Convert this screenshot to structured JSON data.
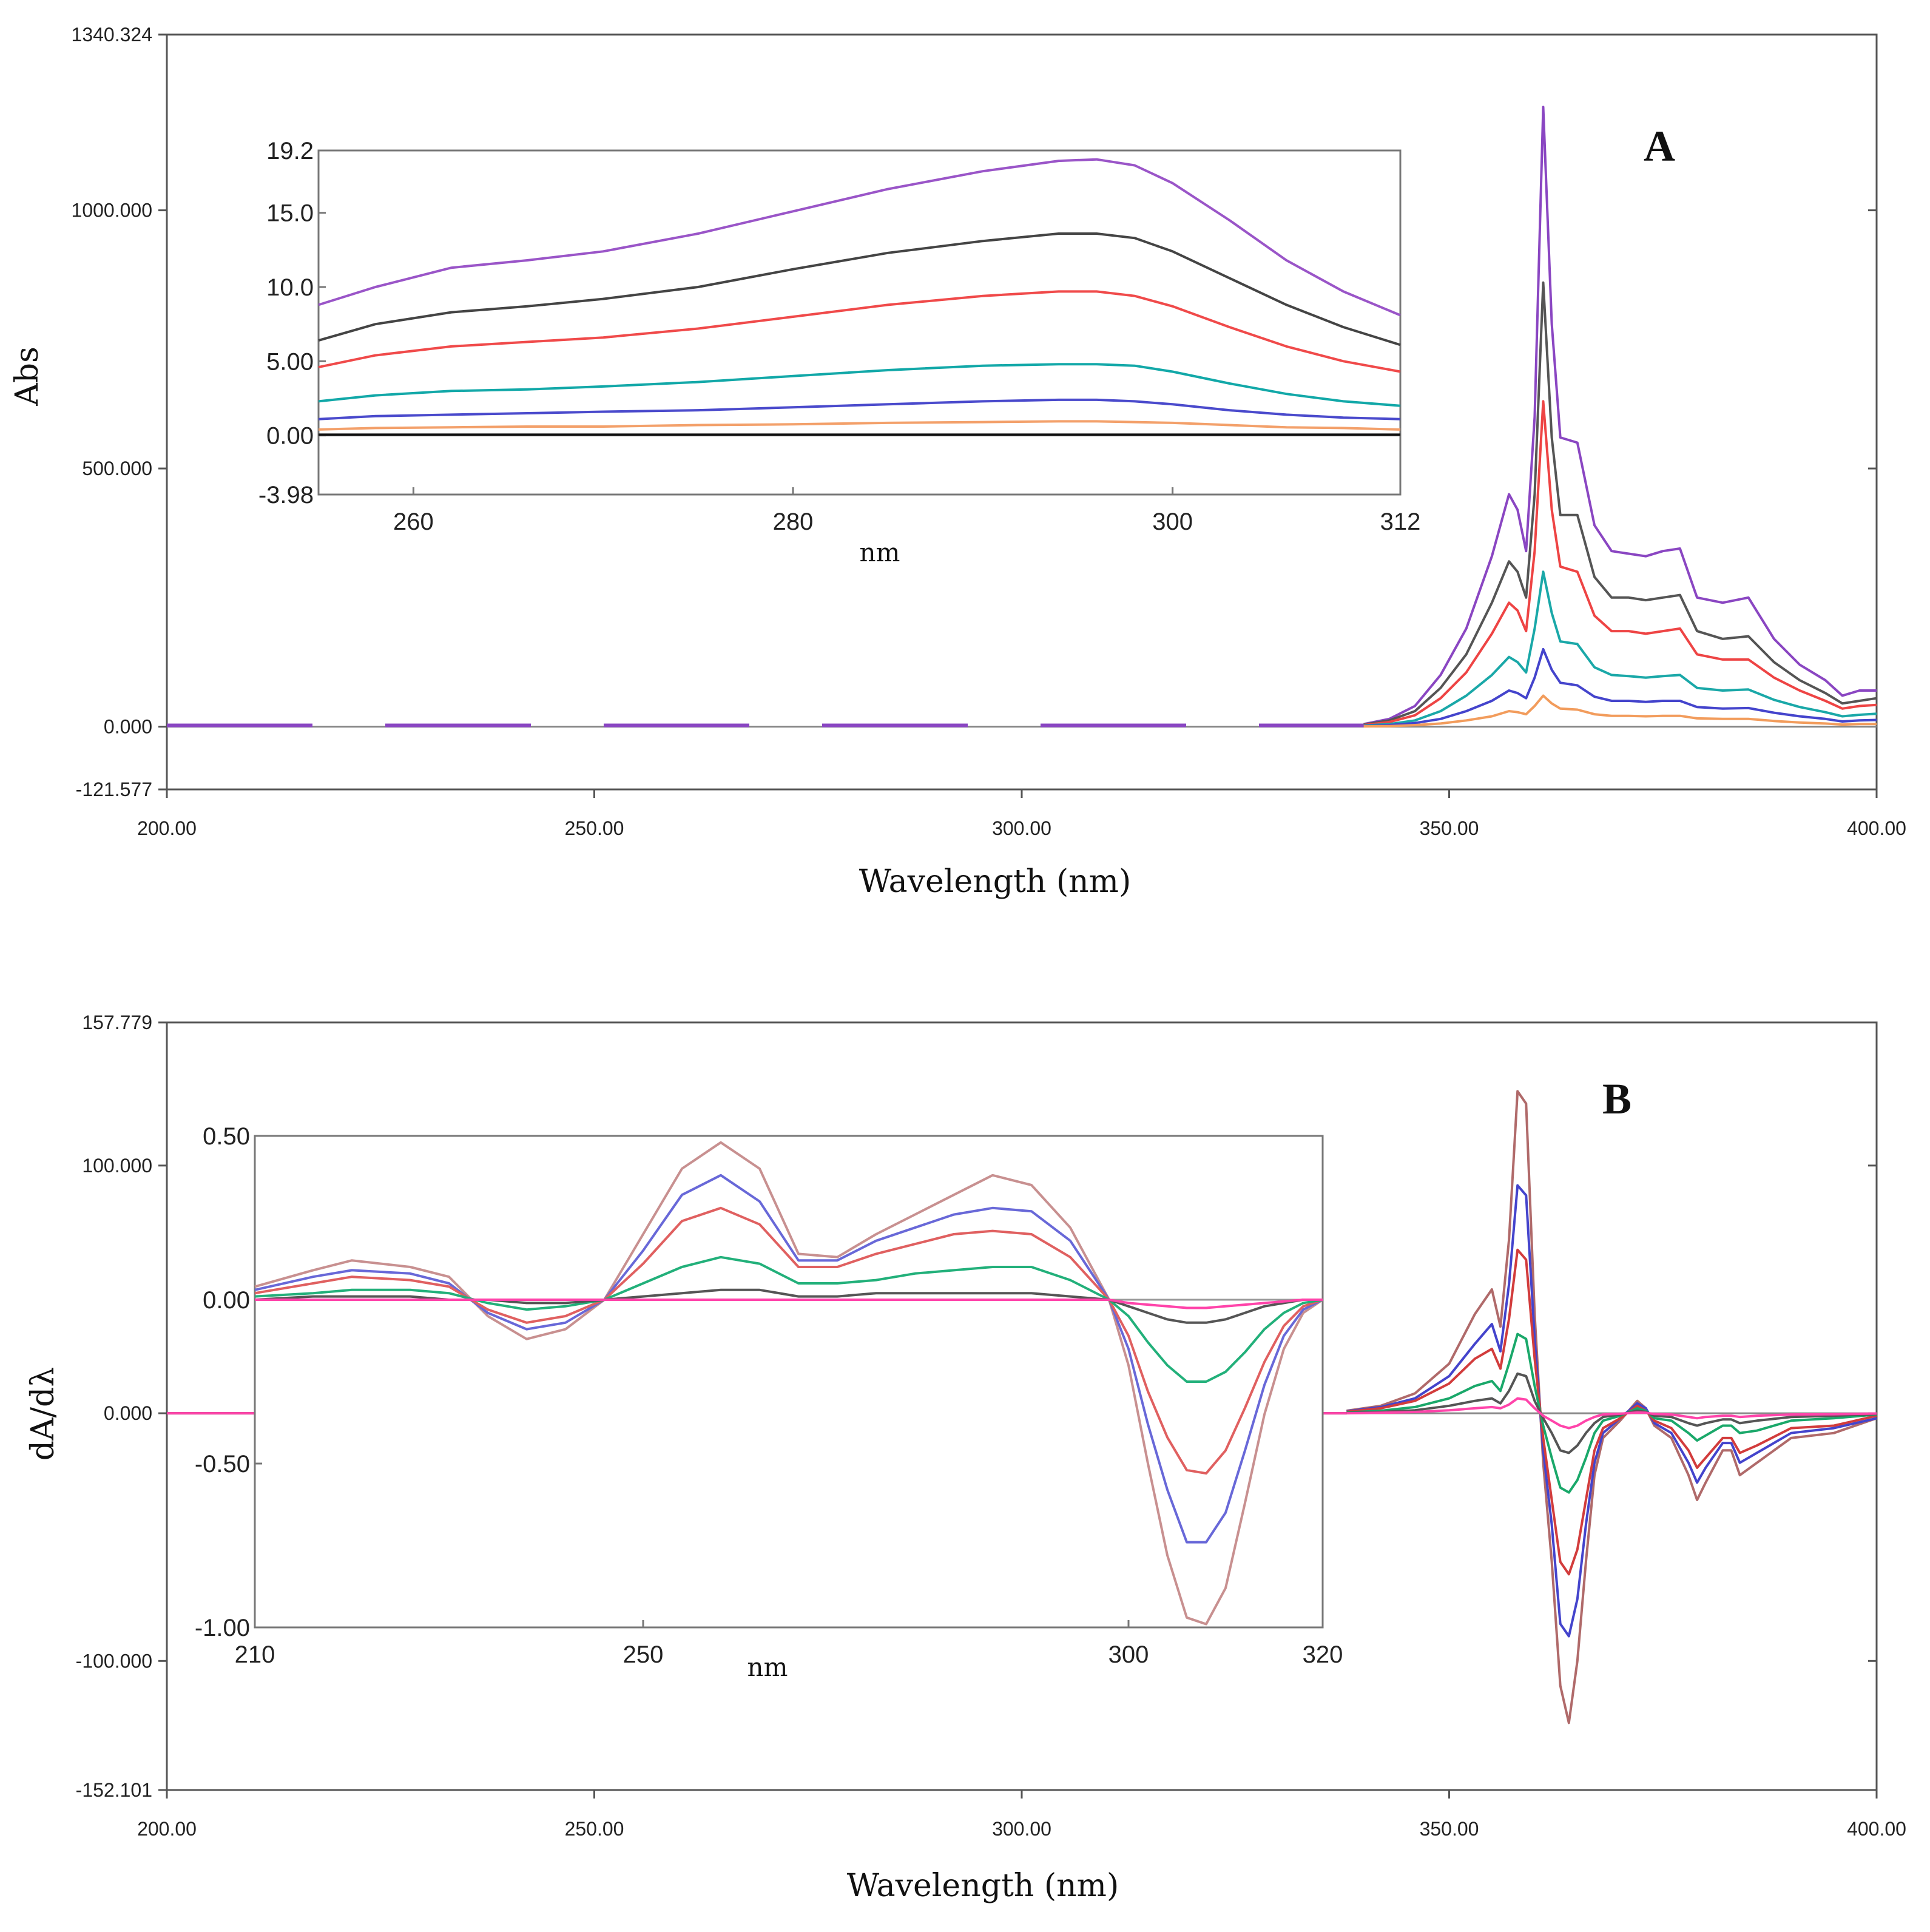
{
  "chart_data": [
    {
      "type": "line",
      "panel": "A",
      "panel_label": "A",
      "xlabel": "Wavelength (nm)",
      "ylabel": "Abs",
      "xlim": [
        200,
        400
      ],
      "ylim": [
        -121.577,
        1340.324
      ],
      "x_ticks": [
        200,
        250,
        300,
        350,
        400
      ],
      "x_tick_labels": [
        "200.00",
        "250.00",
        "300.00",
        "350.00",
        "400.00"
      ],
      "y_ticks": [
        1340.324,
        1000,
        500,
        0,
        -121.577
      ],
      "y_tick_labels": [
        "1340.324",
        "1000.000",
        "500.000",
        "0.000",
        "-121.577"
      ],
      "x": [
        340,
        343,
        346,
        349,
        352,
        355,
        357,
        358,
        359,
        360,
        361,
        362,
        363,
        365,
        367,
        369,
        371,
        373,
        375,
        377,
        379,
        382,
        385,
        388,
        391,
        394,
        396,
        398,
        400
      ],
      "series": [
        {
          "color": "#8a46c2",
          "values": [
            5,
            15,
            40,
            100,
            190,
            330,
            450,
            420,
            340,
            600,
            1200,
            780,
            560,
            550,
            390,
            340,
            335,
            330,
            340,
            345,
            250,
            240,
            250,
            170,
            120,
            90,
            60,
            70,
            70
          ]
        },
        {
          "color": "#555555",
          "values": [
            4,
            12,
            30,
            75,
            140,
            240,
            320,
            300,
            250,
            450,
            860,
            560,
            410,
            410,
            290,
            250,
            250,
            245,
            250,
            255,
            185,
            170,
            175,
            125,
            90,
            65,
            45,
            50,
            55
          ]
        },
        {
          "color": "#ee4444",
          "values": [
            3,
            9,
            22,
            55,
            105,
            180,
            240,
            225,
            185,
            340,
            630,
            420,
            310,
            300,
            215,
            185,
            185,
            180,
            185,
            190,
            140,
            130,
            130,
            95,
            70,
            50,
            35,
            40,
            42
          ]
        },
        {
          "color": "#1aa8a8",
          "values": [
            2,
            5,
            12,
            30,
            60,
            100,
            135,
            125,
            105,
            190,
            300,
            220,
            165,
            160,
            115,
            100,
            98,
            95,
            98,
            100,
            75,
            70,
            72,
            52,
            38,
            28,
            20,
            23,
            25
          ]
        },
        {
          "color": "#4444cc",
          "values": [
            1,
            3,
            7,
            15,
            30,
            50,
            70,
            65,
            55,
            95,
            150,
            110,
            85,
            80,
            58,
            50,
            50,
            48,
            50,
            50,
            38,
            35,
            36,
            27,
            20,
            15,
            10,
            12,
            13
          ]
        },
        {
          "color": "#f29c5c",
          "values": [
            0.5,
            1,
            3,
            6,
            12,
            20,
            30,
            28,
            24,
            40,
            60,
            45,
            35,
            33,
            24,
            21,
            21,
            20,
            21,
            21,
            16,
            15,
            15,
            11,
            8,
            6,
            4,
            5,
            5
          ]
        }
      ],
      "inset": {
        "xlabel": "nm",
        "xlim": [
          255,
          312
        ],
        "ylim": [
          -3.98,
          19.2
        ],
        "x_ticks": [
          260,
          280,
          300,
          312
        ],
        "x_tick_labels": [
          "260",
          "280",
          "300",
          "312"
        ],
        "y_ticks": [
          19.2,
          15,
          10,
          5,
          0,
          -3.98
        ],
        "y_tick_labels": [
          "19.2",
          "15.0",
          "10.0",
          "5.00",
          "0.00",
          "-3.98"
        ],
        "x": [
          255,
          258,
          262,
          266,
          270,
          275,
          280,
          285,
          290,
          294,
          296,
          298,
          300,
          303,
          306,
          309,
          312
        ],
        "series": [
          {
            "color": "#9a55c8",
            "values": [
              8.8,
              10.0,
              11.3,
              11.8,
              12.4,
              13.6,
              15.1,
              16.6,
              17.8,
              18.5,
              18.6,
              18.2,
              17.0,
              14.5,
              11.8,
              9.7,
              8.1
            ]
          },
          {
            "color": "#444444",
            "values": [
              6.4,
              7.5,
              8.3,
              8.7,
              9.2,
              10.0,
              11.2,
              12.3,
              13.1,
              13.6,
              13.6,
              13.3,
              12.4,
              10.6,
              8.8,
              7.3,
              6.1
            ]
          },
          {
            "color": "#f04a4a",
            "values": [
              4.6,
              5.4,
              6.0,
              6.3,
              6.6,
              7.2,
              8.0,
              8.8,
              9.4,
              9.7,
              9.7,
              9.4,
              8.7,
              7.3,
              6.0,
              5.0,
              4.3
            ]
          },
          {
            "color": "#12a8a8",
            "values": [
              2.3,
              2.7,
              3.0,
              3.1,
              3.3,
              3.6,
              4.0,
              4.4,
              4.7,
              4.8,
              4.8,
              4.7,
              4.3,
              3.5,
              2.8,
              2.3,
              2.0
            ]
          },
          {
            "color": "#4a4acc",
            "values": [
              1.1,
              1.3,
              1.4,
              1.5,
              1.6,
              1.7,
              1.9,
              2.1,
              2.3,
              2.4,
              2.4,
              2.3,
              2.1,
              1.7,
              1.4,
              1.2,
              1.1
            ]
          },
          {
            "color": "#f3a06a",
            "values": [
              0.4,
              0.5,
              0.55,
              0.6,
              0.6,
              0.7,
              0.75,
              0.85,
              0.9,
              0.95,
              0.95,
              0.9,
              0.85,
              0.7,
              0.55,
              0.5,
              0.4
            ]
          },
          {
            "color": "#111111",
            "values": [
              0.05,
              0.05,
              0.05,
              0.05,
              0.05,
              0.05,
              0.05,
              0.05,
              0.05,
              0.05,
              0.05,
              0.05,
              0.05,
              0.05,
              0.05,
              0.05,
              0.05
            ]
          }
        ]
      }
    },
    {
      "type": "line",
      "panel": "B",
      "panel_label": "B",
      "xlabel": "Wavelength (nm)",
      "ylabel": "dA/dλ",
      "xlim": [
        200,
        400
      ],
      "ylim": [
        -152.101,
        157.779
      ],
      "x_ticks": [
        200,
        250,
        300,
        350,
        400
      ],
      "x_tick_labels": [
        "200.00",
        "250.00",
        "300.00",
        "350.00",
        "400.00"
      ],
      "y_ticks": [
        157.779,
        100,
        0,
        -100,
        -152.101
      ],
      "y_tick_labels": [
        "157.779",
        "100.000",
        "0.000",
        "-100.000",
        "-152.101"
      ],
      "x": [
        338,
        342,
        346,
        350,
        353,
        355,
        356,
        357,
        358,
        359,
        360,
        361,
        362,
        363,
        364,
        365,
        366,
        367,
        368,
        370,
        372,
        373,
        374,
        376,
        378,
        379,
        380,
        382,
        383,
        384,
        386,
        390,
        395,
        400
      ],
      "series": [
        {
          "color": "#b06a6a",
          "values": [
            1,
            3,
            8,
            20,
            40,
            50,
            35,
            70,
            130,
            125,
            40,
            -20,
            -60,
            -110,
            -125,
            -100,
            -60,
            -25,
            -10,
            -3,
            5,
            2,
            -5,
            -10,
            -25,
            -35,
            -28,
            -15,
            -15,
            -25,
            -20,
            -10,
            -8,
            -2
          ]
        },
        {
          "color": "#4444cc",
          "values": [
            0.8,
            2.5,
            6,
            15,
            28,
            36,
            25,
            52,
            92,
            88,
            30,
            -15,
            -45,
            -85,
            -90,
            -75,
            -45,
            -20,
            -8,
            -2,
            4,
            2,
            -4,
            -8,
            -20,
            -28,
            -22,
            -12,
            -12,
            -20,
            -16,
            -8,
            -6,
            -2
          ]
        },
        {
          "color": "#d23c3c",
          "values": [
            0.6,
            2,
            5,
            12,
            22,
            26,
            18,
            38,
            66,
            62,
            22,
            -10,
            -35,
            -60,
            -65,
            -55,
            -35,
            -15,
            -6,
            -2,
            3,
            1,
            -3,
            -6,
            -15,
            -22,
            -18,
            -10,
            -10,
            -16,
            -13,
            -6,
            -5,
            -1
          ]
        },
        {
          "color": "#1aa86a",
          "values": [
            0.3,
            1,
            2.5,
            6,
            11,
            13,
            9,
            20,
            32,
            30,
            11,
            -5,
            -18,
            -30,
            -32,
            -27,
            -18,
            -8,
            -3,
            -1,
            2,
            1,
            -2,
            -3,
            -8,
            -11,
            -9,
            -5,
            -5,
            -8,
            -7,
            -3,
            -2,
            -0.5
          ]
        },
        {
          "color": "#555555",
          "values": [
            0.1,
            0.5,
            1.2,
            3,
            5,
            6,
            4,
            9,
            16,
            15,
            5,
            -2,
            -8,
            -15,
            -16,
            -13,
            -8,
            -4,
            -1.5,
            -0.5,
            1,
            0.5,
            -1,
            -1.5,
            -4,
            -5,
            -4,
            -2.5,
            -2.5,
            -4,
            -3,
            -1.5,
            -1,
            -0.3
          ]
        },
        {
          "color": "#ff44aa",
          "values": [
            0,
            0.2,
            0.5,
            1.2,
            2,
            2.5,
            2,
            3.5,
            6,
            5.5,
            2,
            -1,
            -3,
            -5,
            -6,
            -5,
            -3,
            -1.5,
            -0.5,
            -0.2,
            0.3,
            0.2,
            -0.3,
            -0.5,
            -1.5,
            -2,
            -1.5,
            -1,
            -1,
            -1.5,
            -1,
            -0.5,
            -0.4,
            -0.1
          ]
        }
      ],
      "inset": {
        "xlabel": "nm",
        "xlim": [
          210,
          320
        ],
        "ylim": [
          -1.0,
          0.5
        ],
        "x_ticks": [
          210,
          250,
          300,
          320
        ],
        "x_tick_labels": [
          "210",
          "250",
          "300",
          "320"
        ],
        "y_ticks": [
          0.5,
          0,
          -0.5,
          -1.0
        ],
        "y_tick_labels": [
          "0.50",
          "0.00",
          "-0.50",
          "-1.00"
        ],
        "x": [
          210,
          216,
          220,
          226,
          230,
          234,
          238,
          242,
          246,
          250,
          254,
          258,
          262,
          266,
          270,
          274,
          278,
          282,
          286,
          290,
          294,
          298,
          300,
          302,
          304,
          306,
          308,
          310,
          312,
          314,
          316,
          318,
          320
        ],
        "series": [
          {
            "color": "#c89090",
            "values": [
              0.04,
              0.09,
              0.12,
              0.1,
              0.07,
              -0.05,
              -0.12,
              -0.09,
              0.0,
              0.2,
              0.4,
              0.48,
              0.4,
              0.14,
              0.13,
              0.2,
              0.26,
              0.32,
              0.38,
              0.35,
              0.22,
              0.0,
              -0.2,
              -0.5,
              -0.78,
              -0.97,
              -0.99,
              -0.88,
              -0.62,
              -0.35,
              -0.15,
              -0.04,
              0.0
            ]
          },
          {
            "color": "#6868d8",
            "values": [
              0.03,
              0.07,
              0.09,
              0.08,
              0.05,
              -0.04,
              -0.09,
              -0.07,
              0.0,
              0.15,
              0.32,
              0.38,
              0.3,
              0.12,
              0.12,
              0.18,
              0.22,
              0.26,
              0.28,
              0.27,
              0.18,
              0.0,
              -0.15,
              -0.38,
              -0.58,
              -0.74,
              -0.74,
              -0.65,
              -0.46,
              -0.26,
              -0.11,
              -0.03,
              0.0
            ]
          },
          {
            "color": "#e06060",
            "values": [
              0.02,
              0.05,
              0.07,
              0.06,
              0.04,
              -0.03,
              -0.07,
              -0.05,
              0.0,
              0.11,
              0.24,
              0.28,
              0.23,
              0.1,
              0.1,
              0.14,
              0.17,
              0.2,
              0.21,
              0.2,
              0.13,
              0.0,
              -0.11,
              -0.28,
              -0.42,
              -0.52,
              -0.53,
              -0.46,
              -0.33,
              -0.19,
              -0.08,
              -0.02,
              0.0
            ]
          },
          {
            "color": "#22b07a",
            "values": [
              0.01,
              0.02,
              0.03,
              0.03,
              0.02,
              -0.01,
              -0.03,
              -0.02,
              0.0,
              0.05,
              0.1,
              0.13,
              0.11,
              0.05,
              0.05,
              0.06,
              0.08,
              0.09,
              0.1,
              0.1,
              0.06,
              0.0,
              -0.05,
              -0.13,
              -0.2,
              -0.25,
              -0.25,
              -0.22,
              -0.16,
              -0.09,
              -0.04,
              -0.01,
              0.0
            ]
          },
          {
            "color": "#555555",
            "values": [
              0.0,
              0.01,
              0.01,
              0.01,
              0.0,
              0.0,
              -0.01,
              -0.01,
              0.0,
              0.01,
              0.02,
              0.03,
              0.03,
              0.01,
              0.01,
              0.02,
              0.02,
              0.02,
              0.02,
              0.02,
              0.01,
              0.0,
              -0.02,
              -0.04,
              -0.06,
              -0.07,
              -0.07,
              -0.06,
              -0.04,
              -0.02,
              -0.01,
              0.0,
              0.0
            ]
          },
          {
            "color": "#ff44aa",
            "values": [
              0.0,
              0.0,
              0.0,
              0.0,
              0.0,
              0.0,
              0.0,
              0.0,
              0.0,
              0.0,
              0.0,
              0.0,
              0.0,
              0.0,
              0.0,
              0.0,
              0.0,
              0.0,
              0.0,
              0.0,
              0.0,
              0.0,
              -0.01,
              -0.015,
              -0.02,
              -0.025,
              -0.025,
              -0.02,
              -0.015,
              -0.01,
              -0.005,
              0.0,
              0.0
            ]
          }
        ]
      }
    }
  ]
}
